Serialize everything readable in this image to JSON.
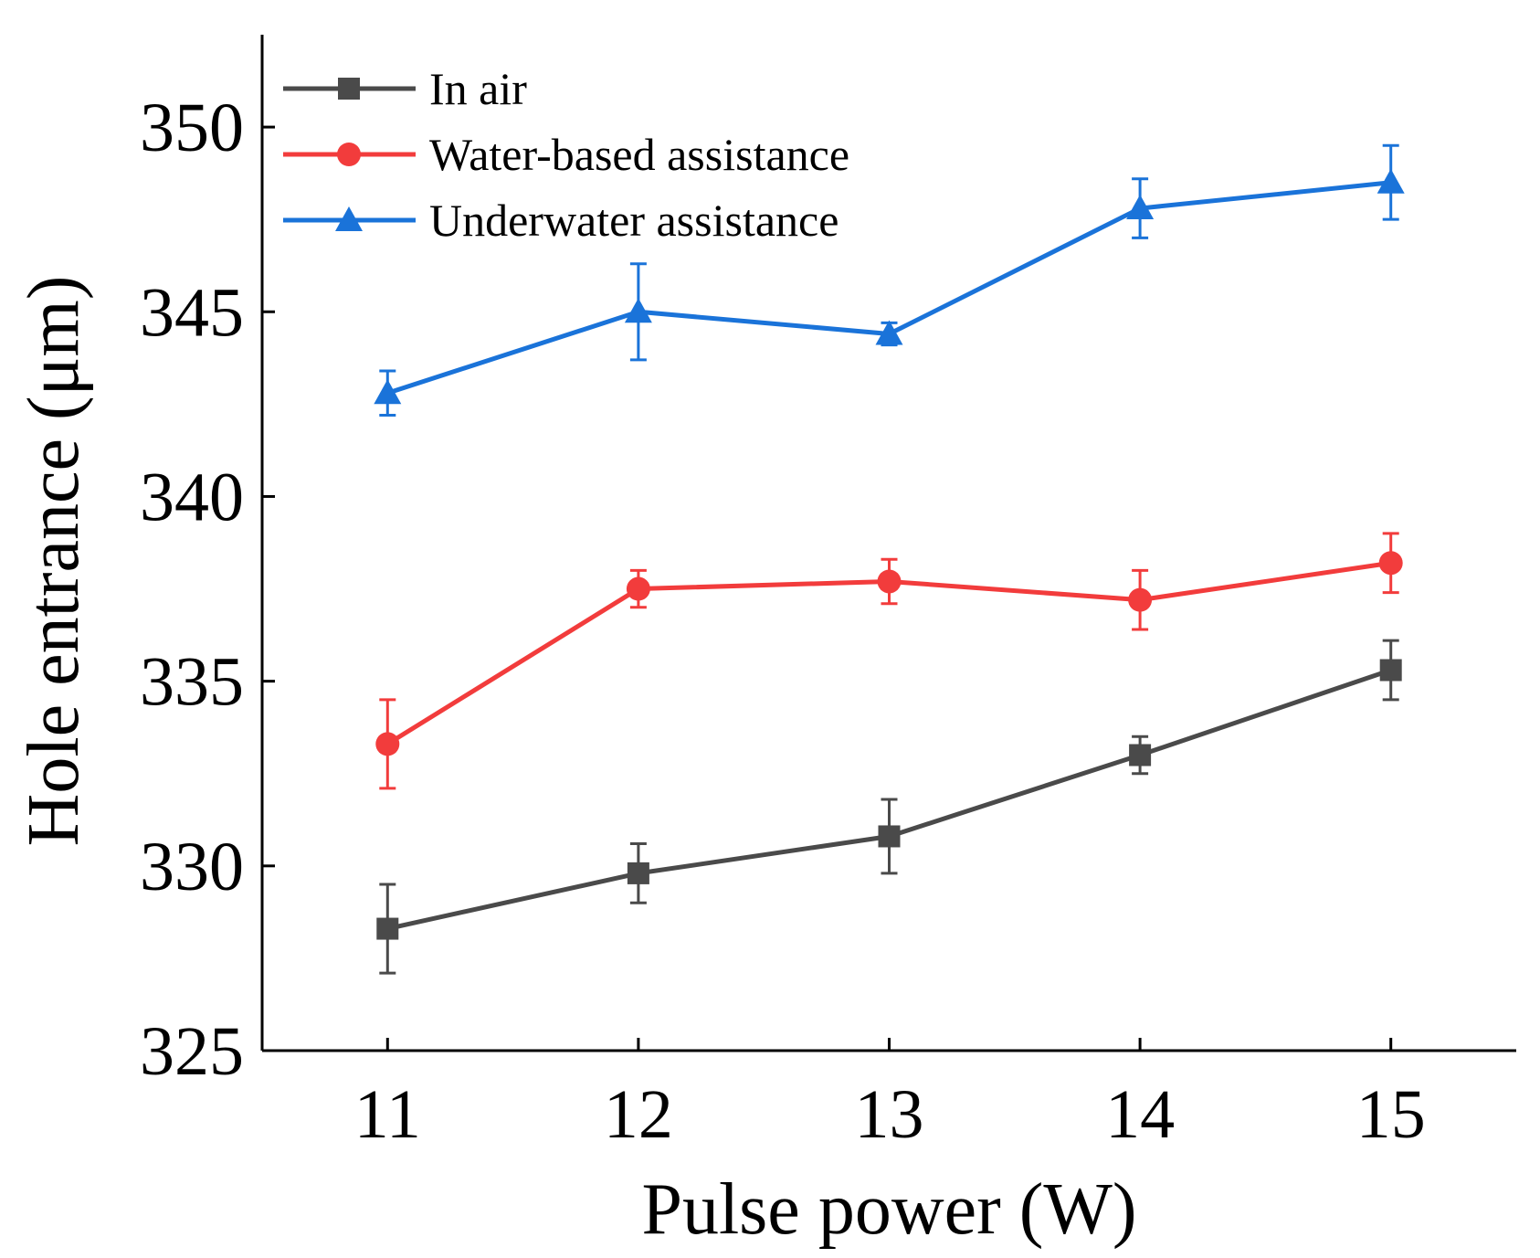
{
  "chart_data": {
    "type": "line",
    "title": "",
    "xlabel": "Pulse power (W)",
    "ylabel": "Hole entrance (μm)",
    "xlim": [
      10.5,
      15.5
    ],
    "ylim": [
      325,
      352.5
    ],
    "x": [
      11,
      12,
      13,
      14,
      15
    ],
    "xticks": [
      "11",
      "12",
      "13",
      "14",
      "15"
    ],
    "yticks": [
      325,
      330,
      335,
      340,
      345,
      350
    ],
    "ytick_labels": [
      "325",
      "330",
      "335",
      "340",
      "345",
      "350"
    ],
    "legend_position": "top-left",
    "series": [
      {
        "name": "In air",
        "color": "#4a4a4a",
        "marker": "square",
        "values": [
          328.3,
          329.8,
          330.8,
          333.0,
          335.3
        ],
        "errors": [
          1.2,
          0.8,
          1.0,
          0.5,
          0.8
        ]
      },
      {
        "name": "Water-based assistance",
        "color": "#f23c3c",
        "marker": "circle",
        "values": [
          333.3,
          337.5,
          337.7,
          337.2,
          338.2
        ],
        "errors": [
          1.2,
          0.5,
          0.6,
          0.8,
          0.8
        ]
      },
      {
        "name": "Underwater assistance",
        "color": "#1a73d9",
        "marker": "triangle",
        "values": [
          342.8,
          345.0,
          344.4,
          347.8,
          348.5
        ],
        "errors": [
          0.6,
          1.3,
          0.3,
          0.8,
          1.0
        ]
      }
    ]
  }
}
